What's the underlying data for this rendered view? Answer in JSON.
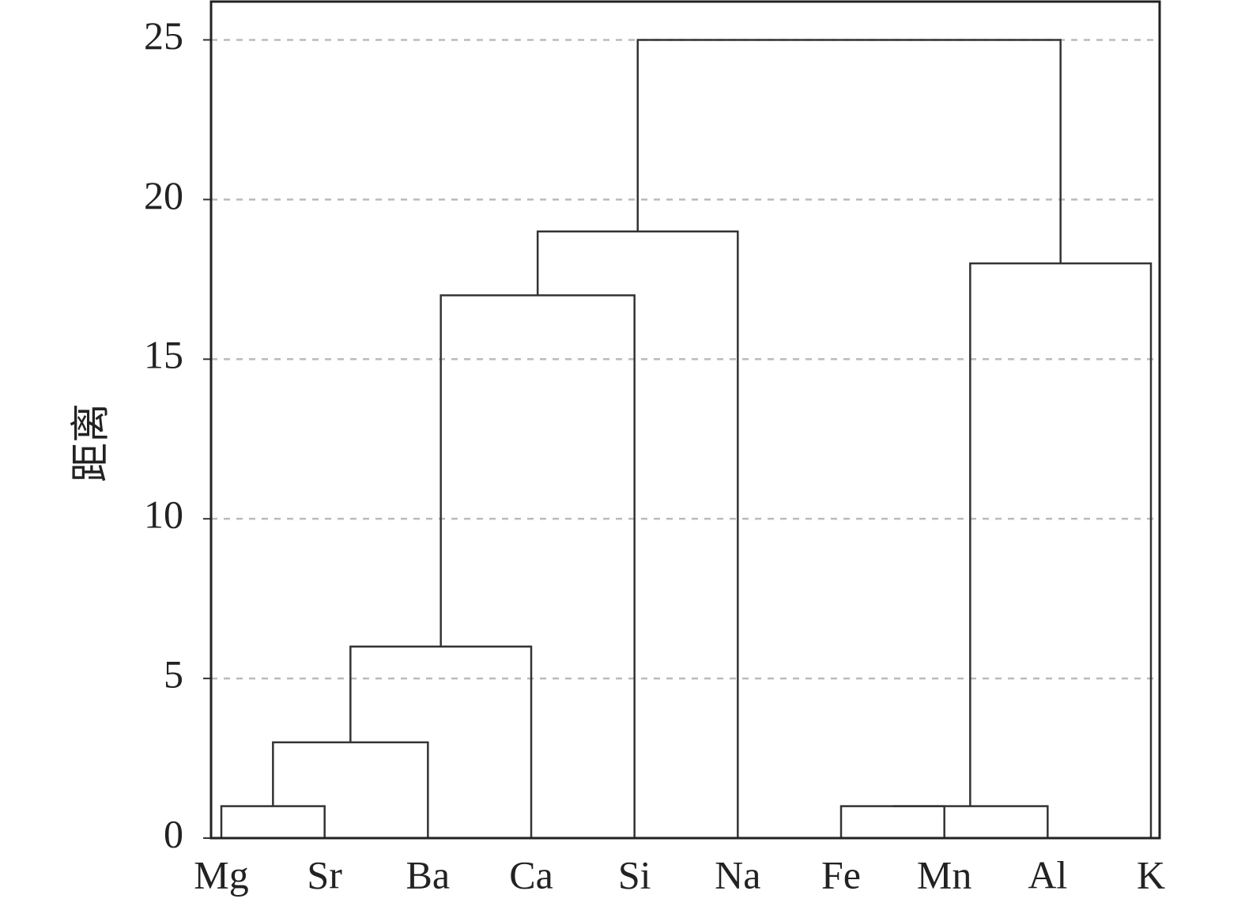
{
  "chart_data": {
    "type": "dendrogram",
    "y_label": "距离",
    "categories": [
      "Mg",
      "Sr",
      "Ba",
      "Ca",
      "Si",
      "Na",
      "Fe",
      "Mn",
      "Al",
      "K"
    ],
    "merges": [
      {
        "children": [
          0,
          1
        ],
        "height": 1
      },
      {
        "children": [
          10,
          2
        ],
        "height": 3
      },
      {
        "children": [
          11,
          3
        ],
        "height": 6
      },
      {
        "children": [
          12,
          4
        ],
        "height": 17
      },
      {
        "children": [
          13,
          5
        ],
        "height": 19
      },
      {
        "children": [
          6,
          7
        ],
        "height": 1
      },
      {
        "children": [
          15,
          8
        ],
        "height": 1
      },
      {
        "children": [
          16,
          9
        ],
        "height": 18
      },
      {
        "children": [
          14,
          17
        ],
        "height": 25
      }
    ],
    "color": "#333333",
    "ylim": [
      0,
      26.2
    ],
    "yticks": [
      0,
      5,
      10,
      15,
      20,
      25
    ],
    "grid": true
  }
}
